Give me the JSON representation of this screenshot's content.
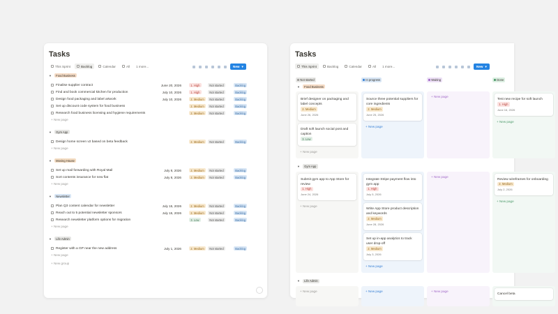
{
  "list_view": {
    "title": "Tasks",
    "tabs": [
      "This Sprint",
      "Backlog",
      "Calendar",
      "All",
      "1 more..."
    ],
    "active_tab": 1,
    "new_button": "New",
    "new_page": "+ New page",
    "new_group": "+ New group",
    "groups": [
      {
        "name": "Food Business",
        "color": "#f6dcc6",
        "rows": [
          {
            "title": "Finalise supplier contract",
            "date": "June 20, 2026",
            "priority": "1. High",
            "status": "Not started",
            "sprint": "Backlog"
          },
          {
            "title": "Find and book commercial kitchen for production",
            "date": "July 10, 2026",
            "priority": "1. High",
            "status": "Not started",
            "sprint": "Backlog"
          },
          {
            "title": "Design food packaging and label artwork",
            "date": "July 10, 2026",
            "priority": "2. Medium",
            "status": "Not started",
            "sprint": "Backlog"
          },
          {
            "title": "Set up discount code system for food business",
            "date": null,
            "priority": "2. Medium",
            "status": "Not started",
            "sprint": "Backlog"
          },
          {
            "title": "Research food business licensing and hygiene requirements",
            "date": null,
            "priority": "2. Medium",
            "status": "Not started",
            "sprint": "Backlog"
          }
        ]
      },
      {
        "name": "Gym App",
        "color": "#e6e6e4",
        "rows": [
          {
            "title": "Design home screen v2 based on beta feedback",
            "date": null,
            "priority": "2. Medium",
            "status": "Not started",
            "sprint": "Backlog"
          }
        ]
      },
      {
        "name": "Moving House",
        "color": "#f4dcc2",
        "rows": [
          {
            "title": "Set up mail forwarding with Royal Mail",
            "date": "July 8, 2026",
            "priority": "2. Medium",
            "status": "Not started",
            "sprint": "Backlog"
          },
          {
            "title": "Sort contents insurance for new flat",
            "date": "July 8, 2026",
            "priority": "2. Medium",
            "status": "Not started",
            "sprint": "Backlog"
          }
        ]
      },
      {
        "name": "Newsletter",
        "color": "#d8e6f5",
        "rows": [
          {
            "title": "Plan Q3 content calendar for newsletter",
            "date": "July 15, 2026",
            "priority": "2. Medium",
            "status": "Not started",
            "sprint": "Backlog"
          },
          {
            "title": "Reach out to 5 potential newsletter sponsors",
            "date": "July 15, 2026",
            "priority": "2. Medium",
            "status": "Not started",
            "sprint": "Backlog"
          },
          {
            "title": "Research newsletter platform options for migration",
            "date": null,
            "priority": "3. Low",
            "status": "Not started",
            "sprint": "Backlog"
          }
        ]
      },
      {
        "name": "Life Admin",
        "color": "#e6e6e4",
        "rows": [
          {
            "title": "Register with a GP near the new address",
            "date": "July 1, 2026",
            "priority": "2. Medium",
            "status": "Not started",
            "sprint": "Backlog"
          }
        ]
      }
    ]
  },
  "board_view": {
    "title": "Tasks",
    "tabs": [
      "This Sprint",
      "Backlog",
      "Calendar",
      "All",
      "1 more..."
    ],
    "active_tab": 0,
    "new_button": "New",
    "new_page": "+ New page",
    "columns": [
      {
        "name": "Not started",
        "color": "#e6e6e4",
        "dot": "#9b9a97",
        "bg": "#f7f7f5"
      },
      {
        "name": "In progress",
        "color": "#d8e6f5",
        "dot": "#3b82d6",
        "bg": "#eef4fb"
      },
      {
        "name": "Waiting",
        "color": "#ecdff5",
        "dot": "#a26ac8",
        "bg": "#f8f3fb"
      },
      {
        "name": "Done",
        "color": "#dcefe2",
        "dot": "#4d9a6a",
        "bg": "#f2f8f4"
      }
    ],
    "groups": [
      {
        "name": "Food Business",
        "color": "#f6dcc6",
        "cells": [
          [
            {
              "title": "Brief designer on packaging and label concepts",
              "priority": "2. Medium",
              "date": "June 26, 2026"
            },
            {
              "title": "Draft soft launch social post and caption",
              "priority": "3. Low",
              "date": null
            }
          ],
          [
            {
              "title": "Source three potential suppliers for core ingredients",
              "priority": "2. Medium",
              "date": "June 25, 2026"
            }
          ],
          [],
          [
            {
              "title": "Test new recipe for soft launch",
              "priority": "1. High",
              "date": "June 16, 2026"
            }
          ]
        ]
      },
      {
        "name": "Gym App",
        "color": "#e6e6e4",
        "cells": [
          [
            {
              "title": "Submit gym app to App Store for review",
              "priority": "1. High",
              "date": "June 24, 2026"
            }
          ],
          [
            {
              "title": "Integrate Stripe payment flow into gym app",
              "priority": "1. High",
              "date": "July 5, 2026"
            },
            {
              "title": "Write App Store product description and keywords",
              "priority": "2. Medium",
              "date": "June 28, 2026"
            },
            {
              "title": "Set up in-app analytics to track user drop-off",
              "priority": "2. Medium",
              "date": "July 3, 2026"
            }
          ],
          [],
          [
            {
              "title": "Review wireframes for onboarding",
              "priority": "2. Medium",
              "date": "July 2, 2026"
            }
          ]
        ]
      },
      {
        "name": "Life Admin",
        "color": "#e6e6e4",
        "cells": [
          [],
          [],
          [],
          [
            {
              "title": "Cancel beta",
              "priority": null,
              "date": null
            }
          ]
        ]
      }
    ]
  }
}
